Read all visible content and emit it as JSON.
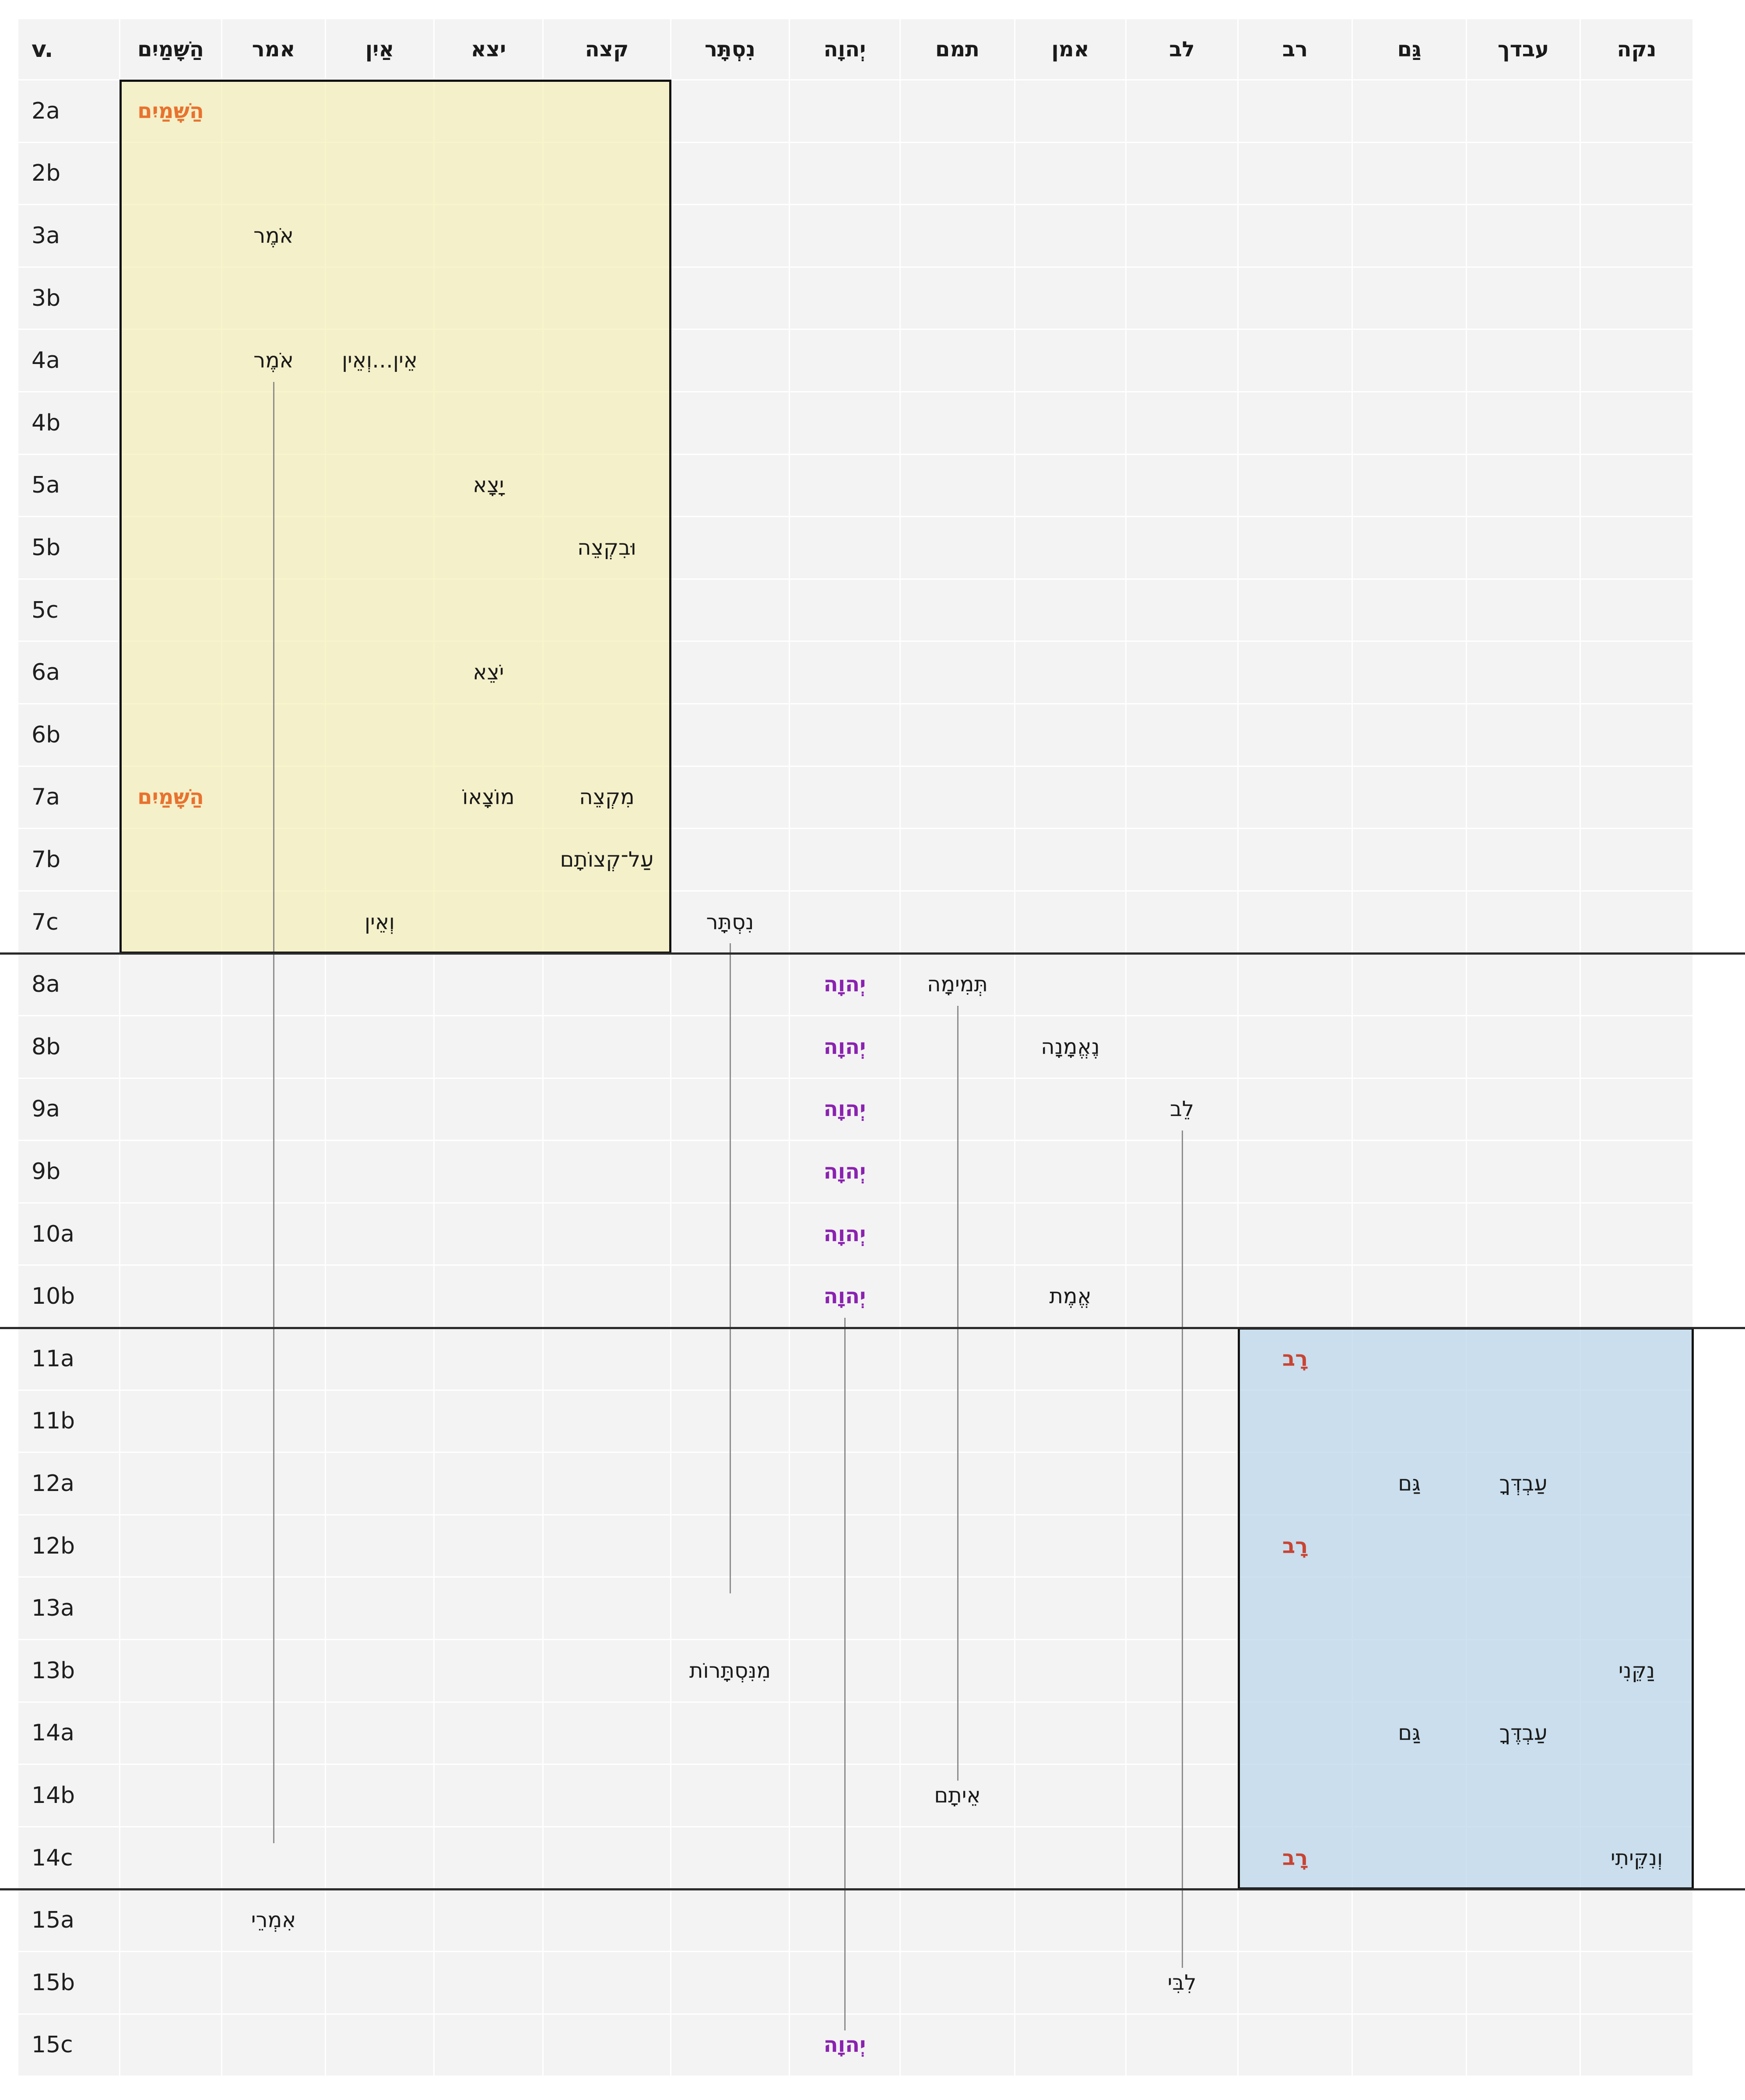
{
  "header": {
    "verse_label": "v.",
    "columns": [
      "הַשָּׁמַיִם",
      "אמר",
      "אַיִן",
      "יצא",
      "קצה",
      "נִסְתָּר",
      "יְהוָה",
      "תמם",
      "אמן",
      "לב",
      "רב",
      "גַּם",
      "עבדך",
      "נקה"
    ]
  },
  "rows": [
    "2a",
    "2b",
    "3a",
    "3b",
    "4a",
    "4b",
    "5a",
    "5b",
    "5c",
    "6a",
    "6b",
    "7a",
    "7b",
    "7c",
    "8a",
    "8b",
    "9a",
    "9b",
    "10a",
    "10b",
    "11a",
    "11b",
    "12a",
    "12b",
    "13a",
    "13b",
    "14a",
    "14b",
    "14c",
    "15a",
    "15b",
    "15c"
  ],
  "colors": {
    "shamayim": "#e8722e",
    "yhwh": "#8a22b0",
    "rav": "#c84434",
    "box_yellow": "#f8f4cc",
    "box_blue": "#cde1f1",
    "cell_bg": "#f3f3f3",
    "connector": "#8c8c8c"
  },
  "occurrences": [
    {
      "row": "2a",
      "col": 0,
      "text": "הַשָּׁמַיִם",
      "cls": "shamayim"
    },
    {
      "row": "3a",
      "col": 1,
      "text": "אֹמֶר"
    },
    {
      "row": "4a",
      "col": 1,
      "text": "אֹמֶר"
    },
    {
      "row": "4a",
      "col": 2,
      "text": "אֵין…וְאֵין"
    },
    {
      "row": "5a",
      "col": 3,
      "text": "יָצָא"
    },
    {
      "row": "5b",
      "col": 4,
      "text": "וּבִקְצֵה"
    },
    {
      "row": "6a",
      "col": 3,
      "text": "יֹצֵא"
    },
    {
      "row": "7a",
      "col": 0,
      "text": "הַשָּׁמַיִם",
      "cls": "shamayim"
    },
    {
      "row": "7a",
      "col": 3,
      "text": "מוֹצָאוֹ"
    },
    {
      "row": "7a",
      "col": 4,
      "text": "מִקְצֵה"
    },
    {
      "row": "7b",
      "col": 4,
      "text": "עַל־קְצוֹתָם"
    },
    {
      "row": "7c",
      "col": 2,
      "text": "וְאֵין"
    },
    {
      "row": "7c",
      "col": 5,
      "text": "נִסְתָּר"
    },
    {
      "row": "8a",
      "col": 6,
      "text": "יְהוָה",
      "cls": "yhwh"
    },
    {
      "row": "8a",
      "col": 7,
      "text": "תְּמִימָה"
    },
    {
      "row": "8b",
      "col": 6,
      "text": "יְהוָה",
      "cls": "yhwh"
    },
    {
      "row": "8b",
      "col": 8,
      "text": "נֶאֱמָנָה"
    },
    {
      "row": "9a",
      "col": 6,
      "text": "יְהוָה",
      "cls": "yhwh"
    },
    {
      "row": "9a",
      "col": 9,
      "text": "לֵב"
    },
    {
      "row": "9b",
      "col": 6,
      "text": "יְהוָה",
      "cls": "yhwh"
    },
    {
      "row": "10a",
      "col": 6,
      "text": "יְהוָה",
      "cls": "yhwh"
    },
    {
      "row": "10b",
      "col": 6,
      "text": "יְהוָה",
      "cls": "yhwh"
    },
    {
      "row": "10b",
      "col": 8,
      "text": "אֱמֶת"
    },
    {
      "row": "11a",
      "col": 10,
      "text": "רָב",
      "cls": "rav"
    },
    {
      "row": "12a",
      "col": 11,
      "text": "גַּם"
    },
    {
      "row": "12a",
      "col": 12,
      "text": "עַבְדְּךָ"
    },
    {
      "row": "12b",
      "col": 10,
      "text": "רָב",
      "cls": "rav"
    },
    {
      "row": "13b",
      "col": 5,
      "text": "מִנִּסְתָּרוֹת"
    },
    {
      "row": "13b",
      "col": 13,
      "text": "נַקֵּנִי"
    },
    {
      "row": "14a",
      "col": 11,
      "text": "גַּם"
    },
    {
      "row": "14a",
      "col": 12,
      "text": "עַבְדֶּךָ"
    },
    {
      "row": "14b",
      "col": 7,
      "text": "אֵיתָם"
    },
    {
      "row": "14c",
      "col": 10,
      "text": "רָב",
      "cls": "rav"
    },
    {
      "row": "14c",
      "col": 13,
      "text": "וְנִקֵּיתִי"
    },
    {
      "row": "15a",
      "col": 1,
      "text": "אִמְרֵי"
    },
    {
      "row": "15b",
      "col": 9,
      "text": "לִבִּי"
    },
    {
      "row": "15c",
      "col": 6,
      "text": "יְהוָה",
      "cls": "yhwh"
    }
  ],
  "connectors": [
    {
      "col": 1,
      "from": "4a",
      "to": "14c"
    },
    {
      "col": 5,
      "from": "7c",
      "to": "13a"
    },
    {
      "col": 6,
      "from": "10b",
      "to": "15c"
    },
    {
      "col": 7,
      "from": "8a",
      "to": "14b"
    },
    {
      "col": 9,
      "from": "9a",
      "to": "15b"
    }
  ],
  "highlight_boxes": [
    {
      "name": "yellow-box",
      "colStart": 0,
      "colEnd": 4,
      "rowStart": "2a",
      "rowEnd": "7c",
      "fill": "#f8f4cc"
    },
    {
      "name": "blue-box",
      "colStart": 10,
      "colEnd": 13,
      "rowStart": "11a",
      "rowEnd": "14c",
      "fill": "#cde1f1"
    }
  ],
  "section_breaks": [
    "7c",
    "10b",
    "14c"
  ]
}
